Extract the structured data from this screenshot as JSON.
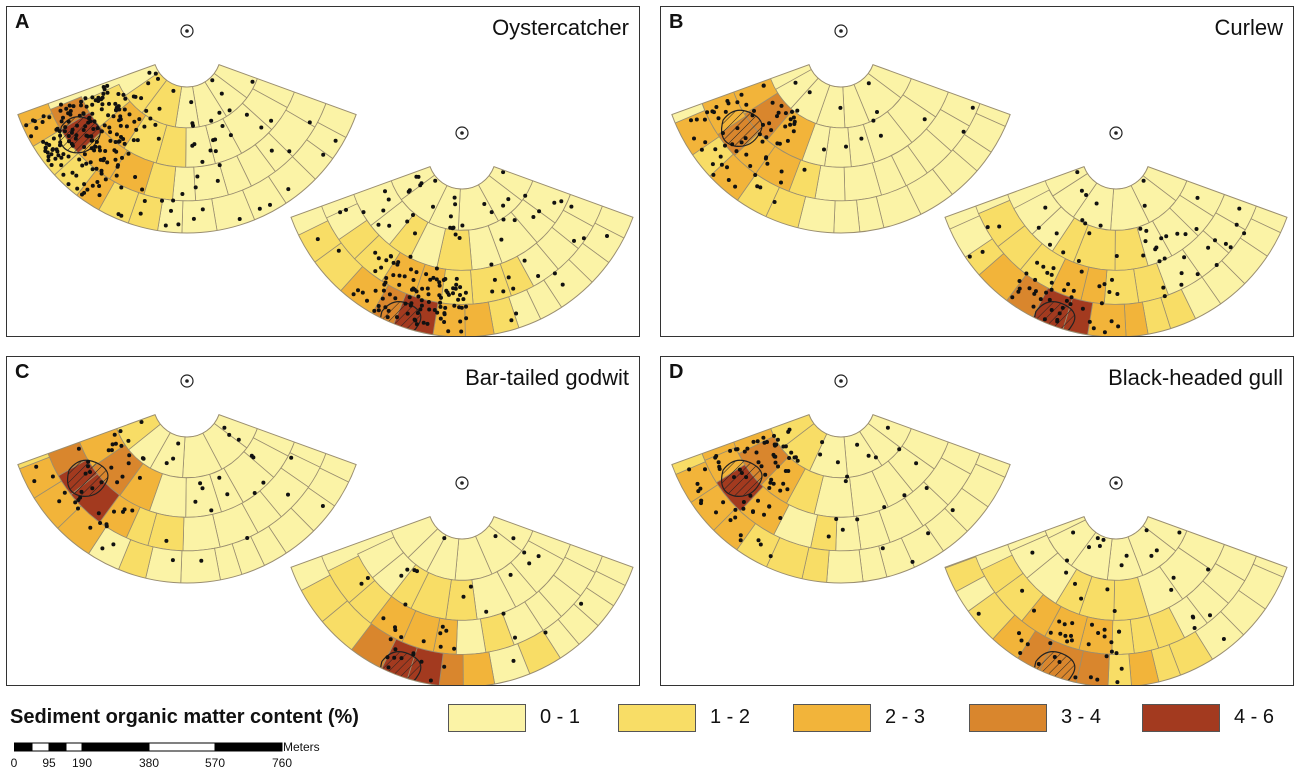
{
  "panels": [
    {
      "letter": "A",
      "species": "Oystercatcher"
    },
    {
      "letter": "B",
      "species": "Curlew"
    },
    {
      "letter": "C",
      "species": "Bar-tailed godwit"
    },
    {
      "letter": "D",
      "species": "Black-headed gull"
    }
  ],
  "legend": {
    "title": "Sediment organic matter content (%)",
    "classes": [
      {
        "label": "0 - 1",
        "color": "#fbf3a6"
      },
      {
        "label": "1 - 2",
        "color": "#f8dd66"
      },
      {
        "label": "2 - 3",
        "color": "#f2b43a"
      },
      {
        "label": "3 - 4",
        "color": "#d9862d"
      },
      {
        "label": "4 - 6",
        "color": "#a33a1f"
      }
    ]
  },
  "scalebar": {
    "unit": "Meters",
    "ticks": [
      "0",
      "95",
      "190",
      "380",
      "570",
      "760"
    ]
  },
  "colors": {
    "cell_border": "#9a8e70",
    "hatch_outline": "#222222",
    "bird_point": "#111111",
    "panel_border": "#333333"
  }
}
